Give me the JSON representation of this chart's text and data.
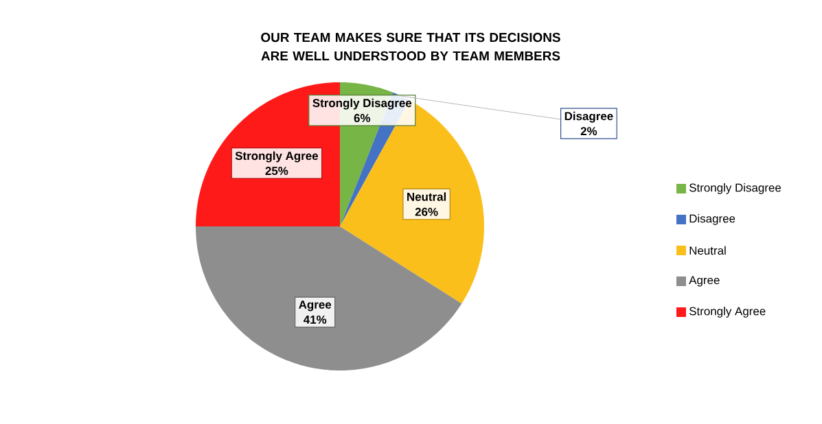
{
  "chart_data": {
    "type": "pie",
    "title": "OUR TEAM MAKES SURE THAT ITS DECISIONS ARE WELL UNDERSTOOD BY TEAM MEMBERS",
    "categories": [
      "Strongly Disagree",
      "Disagree",
      "Neutral",
      "Agree",
      "Strongly Agree"
    ],
    "values": [
      6,
      2,
      26,
      41,
      25
    ],
    "value_labels": [
      "6%",
      "2%",
      "26%",
      "41%",
      "25%"
    ],
    "colors": [
      "#78b547",
      "#4472c4",
      "#fbbf1c",
      "#8e8e8e",
      "#ff1a1a"
    ],
    "legend": "right"
  }
}
